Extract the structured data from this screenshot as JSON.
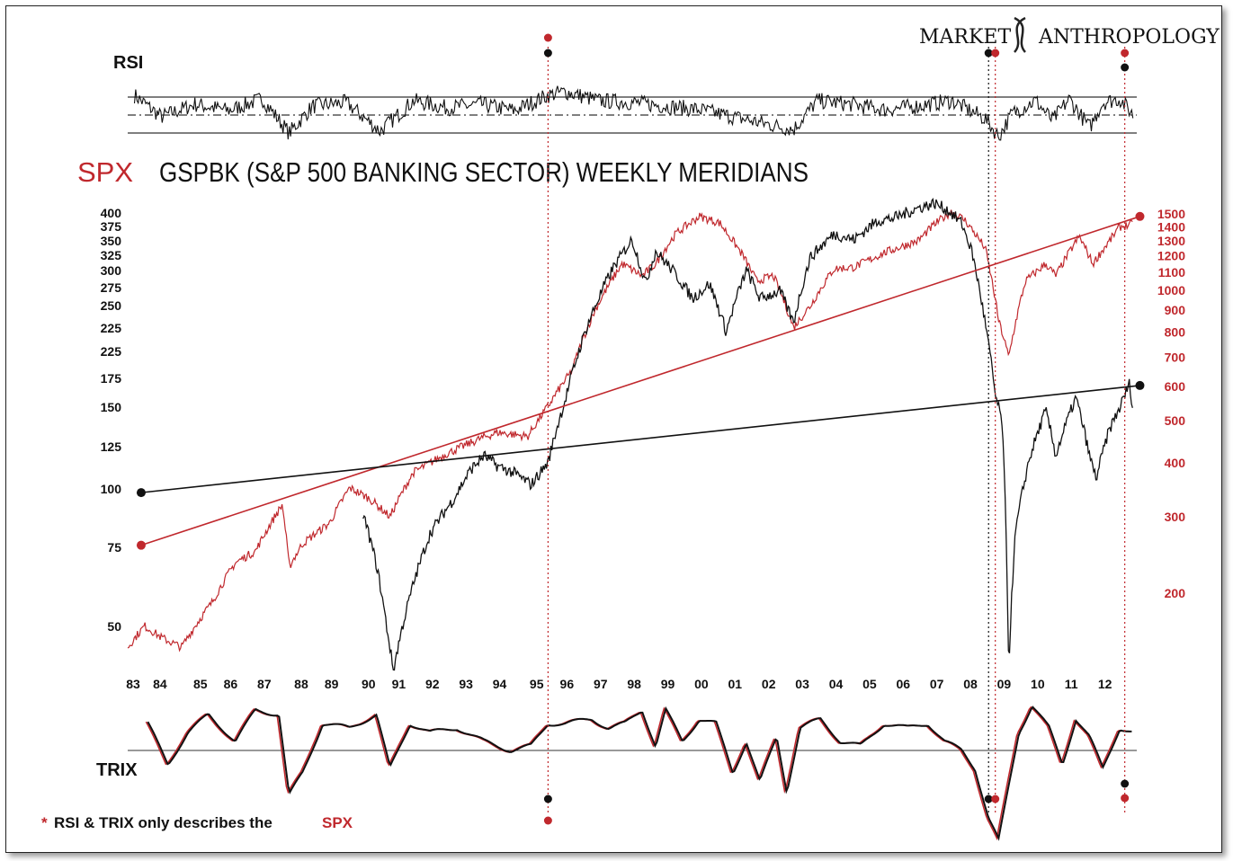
{
  "header": {
    "brand_left": "MARKET",
    "brand_right": "ANTHROPOLOGY",
    "rsi_label": "RSI",
    "title_spx": "SPX",
    "title_main": "GSPBK (S&P 500 BANKING SECTOR) WEEKLY MERIDIANS",
    "trix_label": "TRIX",
    "footnote_star": "*",
    "footnote_text": "RSI & TRIX only describes the",
    "footnote_spx": "SPX"
  },
  "colors": {
    "spx": "#c0282d",
    "gspbk": "#111111",
    "grid": "#333333"
  },
  "chart_data": [
    {
      "type": "line",
      "title": "RSI",
      "x_range": [
        1983.0,
        2012.9
      ],
      "levels": [
        70,
        50,
        30
      ],
      "series": [
        {
          "values_x": [
            1983.2,
            1984,
            1985,
            1986,
            1987,
            1987.8,
            1988.5,
            1989.5,
            1990.5,
            1991.5,
            1992.5,
            1993.5,
            1994.5,
            1995.5,
            1996,
            1997,
            1998,
            1999,
            2000,
            2001,
            2002,
            2002.8,
            2003.5,
            2004.5,
            2005.5,
            2006.5,
            2007.5,
            2008.5,
            2008.9,
            2009.3,
            2010,
            2010.5,
            2011,
            2011.6,
            2012,
            2012.5,
            2012.9
          ],
          "values_y": [
            72,
            48,
            62,
            55,
            68,
            30,
            60,
            64,
            32,
            66,
            58,
            62,
            55,
            72,
            76,
            66,
            64,
            60,
            56,
            48,
            40,
            34,
            66,
            62,
            56,
            60,
            66,
            46,
            26,
            52,
            66,
            44,
            68,
            36,
            64,
            68,
            50
          ]
        }
      ]
    },
    {
      "type": "line",
      "title": "GSPBK (S&P 500 BANKING SECTOR) WEEKLY MERIDIANS",
      "x_label": "",
      "x_ticks": [
        "83",
        "84",
        "85",
        "86",
        "87",
        "88",
        "89",
        "90",
        "91",
        "92",
        "93",
        "94",
        "95",
        "96",
        "97",
        "98",
        "99",
        "00",
        "01",
        "02",
        "03",
        "04",
        "05",
        "06",
        "07",
        "08",
        "09",
        "10",
        "11",
        "12"
      ],
      "x_tick_years": [
        1983.0,
        1983.8,
        1985.0,
        1985.9,
        1986.9,
        1988.0,
        1988.9,
        1990.0,
        1990.9,
        1991.9,
        1992.9,
        1993.9,
        1995.0,
        1995.9,
        1996.9,
        1997.9,
        1998.9,
        1999.9,
        2000.9,
        2001.9,
        2002.9,
        2003.9,
        2004.9,
        2005.9,
        2006.9,
        2007.9,
        2008.9,
        2009.9,
        2010.9,
        2011.9
      ],
      "y_left_label": "",
      "y_left_ticks": [
        "400",
        "375",
        "350",
        "325",
        "300",
        "275",
        "250",
        "225",
        "225",
        "175",
        "150",
        "125",
        "100",
        "75",
        "50"
      ],
      "y_right_label": "",
      "y_right_ticks": [
        "1500",
        "1400",
        "1300",
        "1200",
        "1100",
        "1000",
        "900",
        "800",
        "700",
        "600",
        "500",
        "400",
        "300",
        "200"
      ],
      "series": [
        {
          "name": "SPX",
          "x": [
            1983.0,
            1983.5,
            1984.0,
            1984.6,
            1985.5,
            1986.2,
            1986.8,
            1987.6,
            1987.8,
            1988.2,
            1989.0,
            1989.6,
            1990.2,
            1990.8,
            1991.5,
            1992.5,
            1993.5,
            1994.0,
            1994.9,
            1995.5,
            1996.2,
            1996.9,
            1997.7,
            1998.3,
            1998.7,
            1999.3,
            2000.0,
            2000.6,
            2001.3,
            2001.7,
            2002.2,
            2002.8,
            2003.3,
            2004.0,
            2004.6,
            2005.5,
            2006.5,
            2007.0,
            2007.5,
            2007.9,
            2008.5,
            2008.9,
            2009.2,
            2009.7,
            2010.3,
            2010.6,
            2011.3,
            2011.7,
            2012.2,
            2012.5,
            2012.9
          ],
          "y": [
            150,
            168,
            158,
            150,
            190,
            235,
            250,
            320,
            230,
            260,
            290,
            350,
            330,
            300,
            380,
            420,
            455,
            470,
            460,
            540,
            650,
            900,
            1150,
            1080,
            1150,
            1350,
            1480,
            1430,
            1200,
            1050,
            1080,
            820,
            920,
            1120,
            1130,
            1220,
            1300,
            1420,
            1520,
            1450,
            1250,
            850,
            700,
            1050,
            1150,
            1080,
            1330,
            1150,
            1300,
            1400,
            1420
          ]
        },
        {
          "name": "GSPBK",
          "x": [
            1990.0,
            1990.4,
            1990.7,
            1990.9,
            1991.5,
            1992.0,
            1992.7,
            1993.2,
            1993.6,
            1994.0,
            1994.5,
            1995.0,
            1995.5,
            1996.0,
            1996.7,
            1997.4,
            1998.0,
            1998.4,
            1998.7,
            1999.2,
            1999.8,
            2000.3,
            2000.8,
            2001.4,
            2001.8,
            2002.4,
            2002.8,
            2003.3,
            2004.0,
            2004.6,
            2005.3,
            2005.8,
            2006.5,
            2007.0,
            2007.4,
            2007.8,
            2008.1,
            2008.5,
            2008.8,
            2009.0,
            2009.2,
            2009.4,
            2009.8,
            2010.3,
            2010.6,
            2011.2,
            2011.6,
            2011.8,
            2012.2,
            2012.5,
            2012.8,
            2012.9
          ],
          "y": [
            88,
            68,
            50,
            40,
            62,
            80,
            95,
            110,
            118,
            112,
            108,
            102,
            114,
            155,
            230,
            300,
            350,
            280,
            330,
            300,
            260,
            280,
            220,
            300,
            260,
            270,
            230,
            320,
            360,
            350,
            385,
            390,
            410,
            420,
            405,
            380,
            330,
            230,
            160,
            140,
            40,
            80,
            115,
            148,
            118,
            158,
            118,
            105,
            135,
            150,
            170,
            145
          ]
        }
      ],
      "trendlines": [
        {
          "name": "SPX trend",
          "x": [
            1983.4,
            2013.1
          ],
          "y": [
            258,
            1480
          ]
        },
        {
          "name": "GSPBK trend",
          "x": [
            1983.4,
            2013.1
          ],
          "y": [
            98,
            168
          ]
        }
      ],
      "meridians": [
        1995.5,
        2008.6,
        2008.8,
        2012.65
      ]
    },
    {
      "type": "line",
      "title": "TRIX",
      "x_range": [
        1983.0,
        2012.9
      ],
      "series": [
        {
          "values_x": [
            1983.6,
            1984.2,
            1984.8,
            1985.4,
            1986.2,
            1986.8,
            1987.5,
            1987.8,
            1988.2,
            1988.8,
            1989.6,
            1990.4,
            1990.8,
            1991.4,
            1992.0,
            1992.8,
            1993.6,
            1994.4,
            1995.0,
            1995.5,
            1996.0,
            1996.8,
            1997.3,
            1997.8,
            1998.3,
            1998.7,
            1999.0,
            1999.5,
            2000.0,
            2000.5,
            2001.0,
            2001.4,
            2001.8,
            2002.3,
            2002.6,
            2003.0,
            2003.6,
            2004.2,
            2004.8,
            2005.5,
            2006.2,
            2006.8,
            2007.3,
            2007.8,
            2008.2,
            2008.6,
            2008.9,
            2009.1,
            2009.5,
            2009.9,
            2010.4,
            2010.8,
            2011.2,
            2011.6,
            2012.0,
            2012.5,
            2012.9
          ],
          "values_y": [
            0.6,
            -0.3,
            0.4,
            0.8,
            0.2,
            0.9,
            0.8,
            -1.0,
            -0.5,
            0.6,
            0.5,
            0.8,
            -0.4,
            0.6,
            0.4,
            0.5,
            0.2,
            0.0,
            0.1,
            0.6,
            0.6,
            0.7,
            0.5,
            0.6,
            0.9,
            0.1,
            0.9,
            0.2,
            0.7,
            0.6,
            -0.5,
            0.2,
            -0.7,
            0.3,
            -0.9,
            0.5,
            0.7,
            0.2,
            0.1,
            0.6,
            0.5,
            0.6,
            0.2,
            0.0,
            -0.4,
            -1.5,
            -2.0,
            -1.2,
            0.4,
            1.0,
            0.5,
            -0.3,
            0.7,
            0.3,
            -0.4,
            0.5,
            0.4
          ]
        }
      ],
      "zero_line": 0
    }
  ]
}
